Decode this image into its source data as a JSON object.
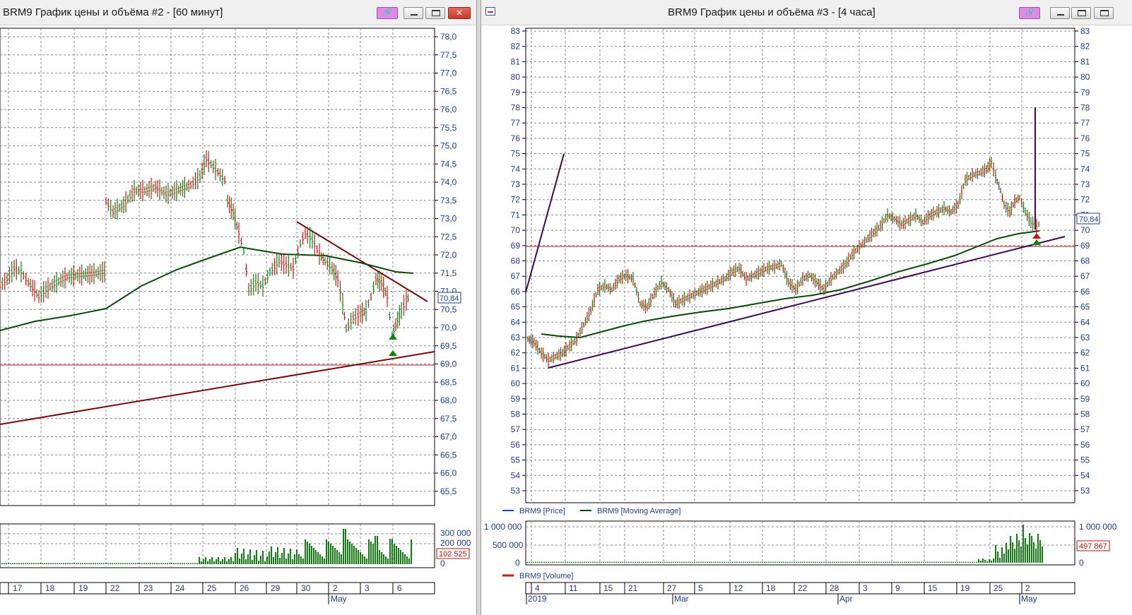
{
  "left": {
    "title": "BRM9 График цены и объёма #2 - [60 минут]",
    "price_ticks": [
      "78,0",
      "77,5",
      "77,0",
      "76,5",
      "76,0",
      "75,5",
      "75,0",
      "74,5",
      "74,0",
      "73,5",
      "73,0",
      "72,5",
      "72,0",
      "71,5",
      "71,0",
      "70,5",
      "70,0",
      "69,5",
      "69,0",
      "68,5",
      "68,0",
      "67,5",
      "67,0",
      "66,5",
      "66,0",
      "65,5"
    ],
    "last_price": "70,84",
    "volume_ticks": [
      "300 000",
      "200 000",
      "0"
    ],
    "last_volume": "102 525",
    "dates": [
      "17",
      "18",
      "19",
      "22",
      "23",
      "24",
      "25",
      "26",
      "29",
      "30",
      "2",
      "3",
      "6"
    ],
    "month": "May"
  },
  "right": {
    "title": "BRM9 График цены и объёма #3 - [4 часа]",
    "price_ticks": [
      "83",
      "82",
      "81",
      "80",
      "79",
      "78",
      "77",
      "76",
      "75",
      "74",
      "73",
      "72",
      "71",
      "70",
      "69",
      "68",
      "67",
      "66",
      "65",
      "64",
      "63",
      "62",
      "61",
      "60",
      "59",
      "58",
      "57",
      "56",
      "55",
      "54",
      "53"
    ],
    "last_price": "70,84",
    "legend": [
      "BRM9 [Price]",
      "BRM9 [Moving Average]"
    ],
    "volume_ticks": [
      "1 000 000",
      "500 000",
      "0"
    ],
    "last_volume": "497 867",
    "volume_legend": "BRM9 [Volume]",
    "dates": [
      "4",
      "11",
      "15",
      "21",
      "27",
      "5",
      "12",
      "18",
      "22",
      "28",
      "3",
      "9",
      "15",
      "19",
      "25",
      "2"
    ],
    "months": [
      "2019",
      "Mar",
      "Apr",
      "May"
    ]
  },
  "colors": {
    "up": "#108010",
    "down": "#e01010",
    "ma": "#0a4a0a",
    "trend_left": "#7a0a0a",
    "trend_right": "#3a0a5a",
    "axis": "#1c3f8c",
    "grid": "#8a8a8a"
  },
  "icons": [
    "link-icon",
    "minimize-icon",
    "maximize-icon",
    "close-icon",
    "chart-window-icon"
  ]
}
